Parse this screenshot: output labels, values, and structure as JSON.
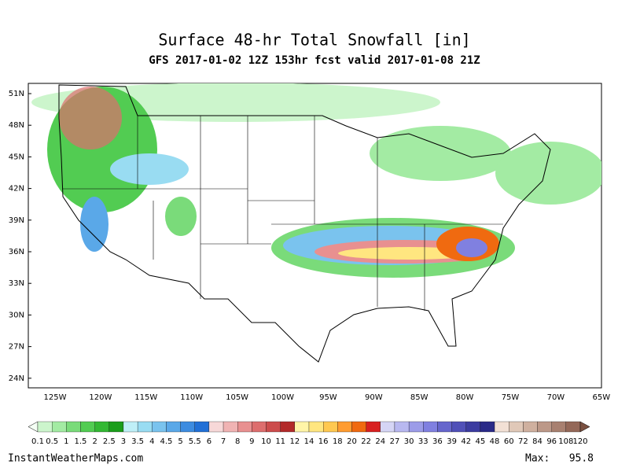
{
  "title": "Surface 48-hr Total Snowfall [in]",
  "subtitle": "GFS 2017-01-02 12Z 153hr fcst valid 2017-01-08 21Z",
  "lat_labels": [
    "51N",
    "48N",
    "45N",
    "42N",
    "39N",
    "36N",
    "33N",
    "30N",
    "27N",
    "24N"
  ],
  "lon_labels": [
    "125W",
    "120W",
    "115W",
    "110W",
    "105W",
    "100W",
    "95W",
    "90W",
    "85W",
    "80W",
    "75W",
    "70W",
    "65W"
  ],
  "colorbar": {
    "labels": [
      "0.1",
      "0.5",
      "1",
      "1.5",
      "2",
      "2.5",
      "3",
      "3.5",
      "4",
      "4.5",
      "5",
      "5.5",
      "6",
      "7",
      "8",
      "9",
      "10",
      "11",
      "12",
      "14",
      "16",
      "18",
      "20",
      "22",
      "24",
      "27",
      "30",
      "33",
      "36",
      "39",
      "42",
      "45",
      "48",
      "60",
      "72",
      "84",
      "96",
      "108",
      "120"
    ],
    "colors": [
      "#f4fff4",
      "#ccf5cc",
      "#a3eba3",
      "#7adb7a",
      "#52cc52",
      "#33b833",
      "#1a9e1a",
      "#bfeff7",
      "#99dcf2",
      "#7ac3ee",
      "#5aa8e8",
      "#3d8ce0",
      "#2170d6",
      "#f7d8d8",
      "#f0b3b3",
      "#e89090",
      "#dd6e6e",
      "#cc4c4c",
      "#b32a2a",
      "#fff5a8",
      "#ffe680",
      "#ffc850",
      "#ff9c30",
      "#f06a10",
      "#d82020",
      "#d5d5f5",
      "#b8b8f0",
      "#9c9ce8",
      "#8080e0",
      "#6666cc",
      "#5050b8",
      "#3c3ca0",
      "#2a2a88",
      "#f2e0d5",
      "#e0c8b8",
      "#cfb09f",
      "#bc9888",
      "#a88070",
      "#946858",
      "#7a5040"
    ]
  },
  "footer": {
    "source": "InstantWeatherMaps.com",
    "max_label": "Max:",
    "max_value": "95.8"
  }
}
